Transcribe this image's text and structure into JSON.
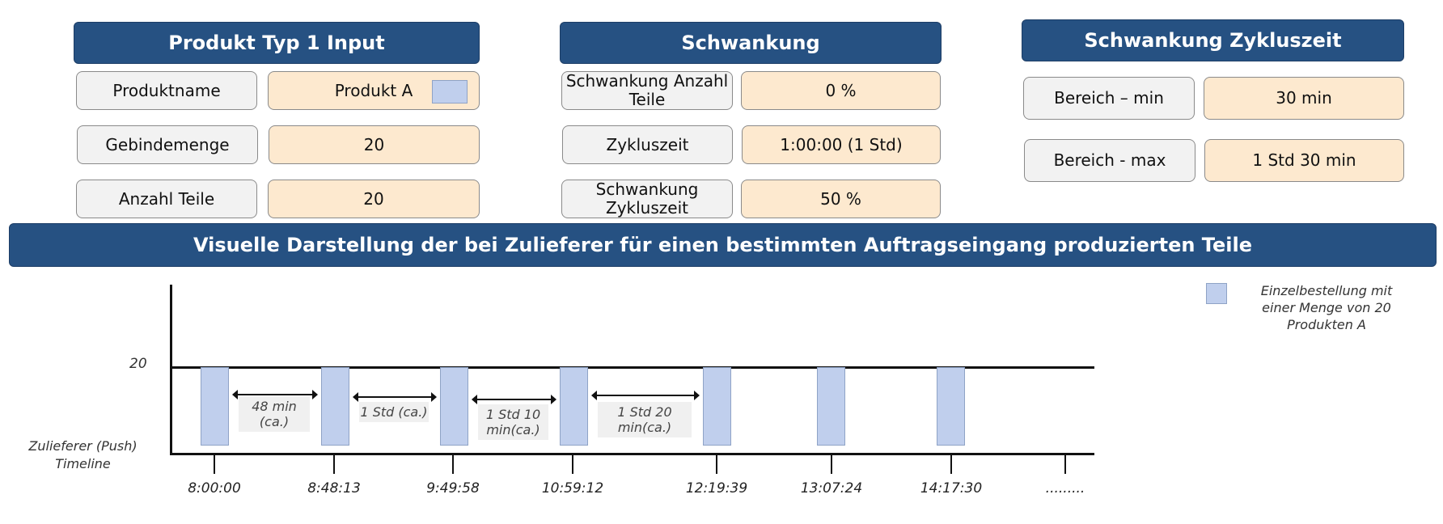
{
  "panels": {
    "produkt": {
      "title": "Produkt Typ 1 Input",
      "rows": [
        {
          "label": "Produktname",
          "value": "Produkt A"
        },
        {
          "label": "Gebindemenge",
          "value": "20"
        },
        {
          "label": "Anzahl Teile",
          "value": "20"
        }
      ]
    },
    "schwankung": {
      "title": "Schwankung",
      "rows": [
        {
          "label": "Schwankung Anzahl Teile",
          "value": "0 %"
        },
        {
          "label": "Zykluszeit",
          "value": "1:00:00 (1 Std)"
        },
        {
          "label": "Schwankung Zykluszeit",
          "value": "50 %"
        }
      ]
    },
    "zykluszeit": {
      "title": "Schwankung  Zykluszeit",
      "rows": [
        {
          "label": "Bereich – min",
          "value": "30 min"
        },
        {
          "label": "Bereich - max",
          "value": "1 Std 30 min"
        }
      ]
    }
  },
  "banner": "Visuelle Darstellung der bei Zulieferer für einen bestimmten Auftragseingang produzierten Teile",
  "colors": {
    "header": "#265182",
    "label_bg": "#f2f2f2",
    "value_bg": "#fde9cf",
    "bar": "#c0cfed"
  },
  "chart_data": {
    "type": "bar",
    "ylabel_tick": "20",
    "xlabel": "Zulieferer (Push) Timeline",
    "categories": [
      "8:00:00",
      "8:48:13",
      "9:49:58",
      "10:59:12",
      "12:19:39",
      "13:07:24",
      "14:17:30"
    ],
    "trailing_tick": ".........",
    "values": [
      20,
      20,
      20,
      20,
      20,
      20,
      20
    ],
    "gap_labels": [
      "48 min (ca.)",
      "1 Std (ca.)",
      "1 Std 10 min(ca.)",
      "1 Std 20 min(ca.)"
    ],
    "legend": {
      "label": "Einzelbestellung mit einer Menge von 20 Produkten A",
      "position": "top-right"
    }
  }
}
